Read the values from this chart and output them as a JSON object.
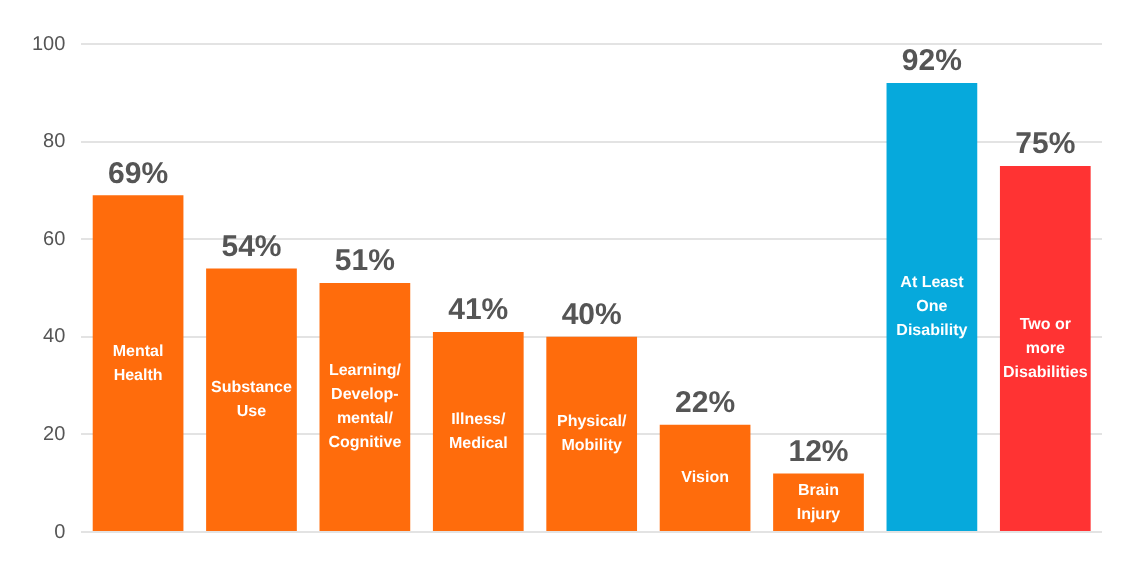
{
  "chart_data": {
    "type": "bar",
    "categories": [
      "Mental\nHealth",
      "Substance\nUse",
      "Learning/\nDevelop-\nmental/\nCognitive",
      "Illness/\nMedical",
      "Physical/\nMobility",
      "Vision",
      "Brain\nInjury",
      "At Least\nOne\nDisability",
      "Two or\nmore\nDisabilities"
    ],
    "values": [
      69,
      54,
      51,
      41,
      40,
      22,
      12,
      92,
      75
    ],
    "colors": [
      "#ff6c0c",
      "#ff6c0c",
      "#ff6c0c",
      "#ff6c0c",
      "#ff6c0c",
      "#ff6c0c",
      "#ff6c0c",
      "#06a9dc",
      "#ff3333"
    ],
    "value_labels": [
      "69%",
      "54%",
      "51%",
      "41%",
      "40%",
      "22%",
      "12%",
      "92%",
      "75%"
    ],
    "ylim": [
      0,
      100
    ],
    "yticks": [
      0,
      20,
      40,
      60,
      80,
      100
    ],
    "grid": "y"
  }
}
